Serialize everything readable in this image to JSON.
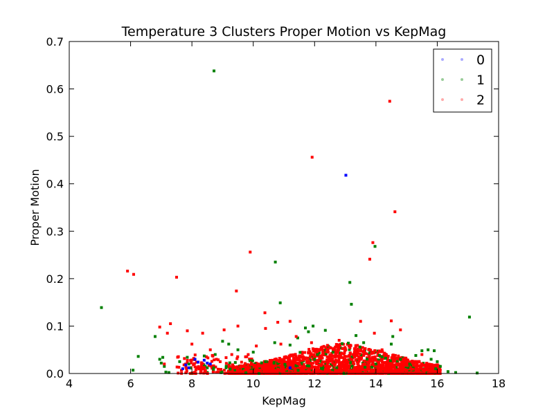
{
  "chart_data": {
    "type": "scatter",
    "title": "Temperature 3 Clusters Proper Motion vs KepMag",
    "xlabel": "KepMag",
    "ylabel": "Proper Motion",
    "xlim": [
      4,
      18
    ],
    "ylim": [
      0,
      0.7
    ],
    "xticks": [
      "4",
      "6",
      "8",
      "10",
      "12",
      "14",
      "16",
      "18"
    ],
    "yticks": [
      "0.0",
      "0.1",
      "0.2",
      "0.3",
      "0.4",
      "0.5",
      "0.6",
      "0.7"
    ],
    "grid": false,
    "legend_position": "top-right",
    "series": [
      {
        "name": "0",
        "color": "#0000ff",
        "points": [
          [
            13.02,
            0.418
          ],
          [
            8.2,
            0.024
          ],
          [
            8.5,
            0.022
          ],
          [
            7.8,
            0.018
          ],
          [
            7.9,
            0.012
          ],
          [
            8.1,
            0.03
          ],
          [
            8.6,
            0.02
          ],
          [
            11.2,
            0.012
          ],
          [
            7.7,
            0.01
          ],
          [
            8.4,
            0.028
          ]
        ]
      },
      {
        "name": "1",
        "color": "#008000",
        "points": [
          [
            5.05,
            0.139
          ],
          [
            6.08,
            0.007
          ],
          [
            6.25,
            0.036
          ],
          [
            6.8,
            0.078
          ],
          [
            6.95,
            0.03
          ],
          [
            7.0,
            0.022
          ],
          [
            7.05,
            0.034
          ],
          [
            7.1,
            0.015
          ],
          [
            7.15,
            0.003
          ],
          [
            7.25,
            0.002
          ],
          [
            7.6,
            0.025
          ],
          [
            7.9,
            0.02
          ],
          [
            8.5,
            0.012
          ],
          [
            8.72,
            0.638
          ],
          [
            9.2,
            0.062
          ],
          [
            9.0,
            0.068
          ],
          [
            9.5,
            0.05
          ],
          [
            10.0,
            0.045
          ],
          [
            10.4,
            0.025
          ],
          [
            10.72,
            0.235
          ],
          [
            10.88,
            0.149
          ],
          [
            10.7,
            0.065
          ],
          [
            11.2,
            0.06
          ],
          [
            11.45,
            0.075
          ],
          [
            11.7,
            0.096
          ],
          [
            11.8,
            0.088
          ],
          [
            11.95,
            0.1
          ],
          [
            12.35,
            0.091
          ],
          [
            12.6,
            0.045
          ],
          [
            12.9,
            0.063
          ],
          [
            13.1,
            0.064
          ],
          [
            13.15,
            0.192
          ],
          [
            13.2,
            0.146
          ],
          [
            13.35,
            0.08
          ],
          [
            13.6,
            0.065
          ],
          [
            13.97,
            0.268
          ],
          [
            14.2,
            0.035
          ],
          [
            14.5,
            0.062
          ],
          [
            14.55,
            0.078
          ],
          [
            14.8,
            0.03
          ],
          [
            15.1,
            0.02
          ],
          [
            15.3,
            0.038
          ],
          [
            15.5,
            0.048
          ],
          [
            15.7,
            0.05
          ],
          [
            15.8,
            0.03
          ],
          [
            15.9,
            0.048
          ],
          [
            16.0,
            0.025
          ],
          [
            16.1,
            0.015
          ],
          [
            16.35,
            0.004
          ],
          [
            16.6,
            0.002
          ],
          [
            17.05,
            0.119
          ],
          [
            17.3,
            0.001
          ],
          [
            15.95,
            0.01
          ],
          [
            14.0,
            0.02
          ],
          [
            12.0,
            0.03
          ]
        ]
      },
      {
        "name": "2",
        "color": "#ff0000",
        "points": [
          [
            14.45,
            0.574
          ],
          [
            11.92,
            0.456
          ],
          [
            14.62,
            0.341
          ],
          [
            13.9,
            0.276
          ],
          [
            13.8,
            0.241
          ],
          [
            9.9,
            0.256
          ],
          [
            7.5,
            0.203
          ],
          [
            5.9,
            0.216
          ],
          [
            6.1,
            0.209
          ],
          [
            9.45,
            0.174
          ],
          [
            10.38,
            0.128
          ],
          [
            10.8,
            0.108
          ],
          [
            10.4,
            0.095
          ],
          [
            13.5,
            0.11
          ],
          [
            14.5,
            0.111
          ],
          [
            14.8,
            0.092
          ],
          [
            13.95,
            0.085
          ],
          [
            7.3,
            0.105
          ],
          [
            6.95,
            0.098
          ],
          [
            7.2,
            0.085
          ],
          [
            7.85,
            0.09
          ],
          [
            8.35,
            0.085
          ],
          [
            8.0,
            0.062
          ],
          [
            9.5,
            0.1
          ],
          [
            9.05,
            0.092
          ],
          [
            11.2,
            0.11
          ],
          [
            11.4,
            0.078
          ],
          [
            12.8,
            0.07
          ],
          [
            12.5,
            0.055
          ],
          [
            15.5,
            0.04
          ],
          [
            15.3,
            0.025
          ],
          [
            14.2,
            0.05
          ],
          [
            13.3,
            0.045
          ],
          [
            10.1,
            0.058
          ],
          [
            10.9,
            0.062
          ],
          [
            8.6,
            0.05
          ],
          [
            9.3,
            0.04
          ],
          [
            7.1,
            0.02
          ],
          [
            8.8,
            0.03
          ],
          [
            11.9,
            0.065
          ]
        ]
      }
    ]
  }
}
